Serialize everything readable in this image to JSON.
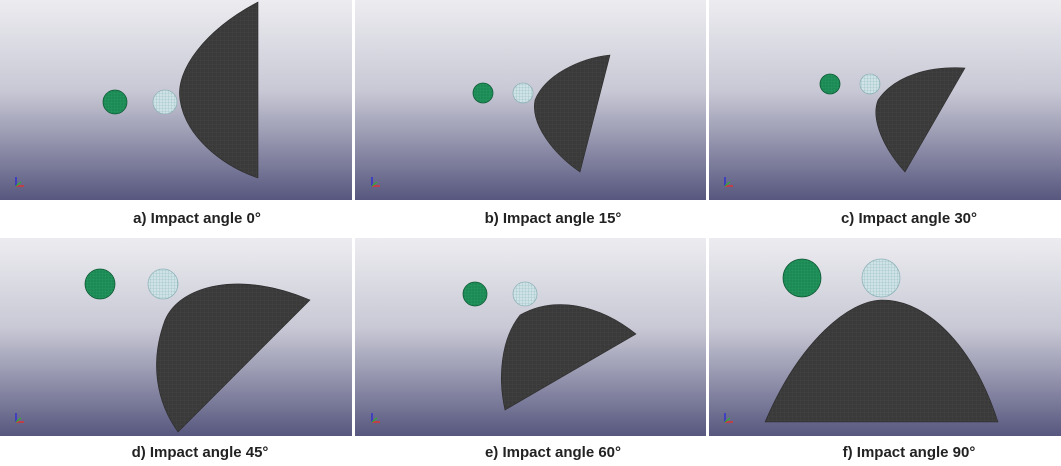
{
  "panels": [
    {
      "caption": "a) Impact angle 0°"
    },
    {
      "caption": "b) Impact angle 15°"
    },
    {
      "caption": "c) Impact angle 30°"
    },
    {
      "caption": "d) Impact angle 45°"
    },
    {
      "caption": "e) Impact angle 60°"
    },
    {
      "caption": "f) Impact angle 90°"
    }
  ]
}
